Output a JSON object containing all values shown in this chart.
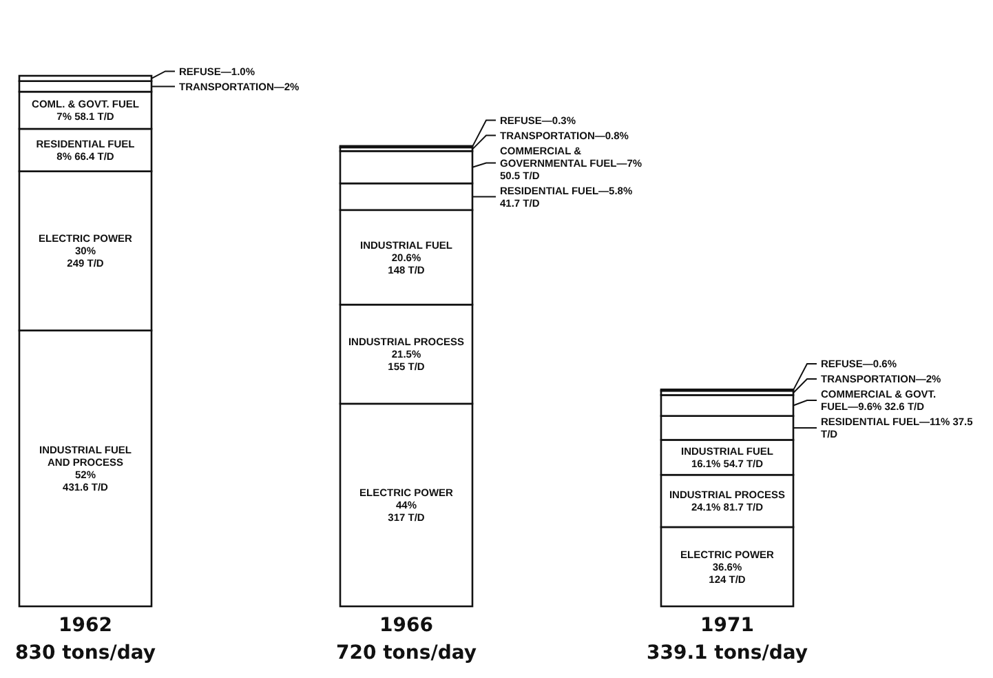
{
  "chart_data": {
    "type": "bar",
    "stacked": true,
    "categories": [
      "1962",
      "1966",
      "1971"
    ],
    "totals": [
      "830 tons/day",
      "720 tons/day",
      "339.1 tons/day"
    ],
    "series": [
      {
        "color": "#ffffff",
        "values": [
          431.6,
          null,
          null
        ],
        "value_labels": [
          "INDUSTRIAL FUEL\nAND PROCESS\n52%\n431.6 T/D",
          null,
          null
        ]
      },
      {
        "color": "#ffffff",
        "values": [
          249,
          317,
          124
        ],
        "value_labels": [
          "ELECTRIC POWER\n30%\n249 T/D",
          "ELECTRIC POWER\n44%\n317 T/D",
          "ELECTRIC POWER\n36.6%\n124 T/D"
        ]
      },
      {
        "color": "#ffffff",
        "values": [
          null,
          155,
          81.7
        ],
        "value_labels": [
          null,
          "INDUSTRIAL PROCESS\n21.5%\n155 T/D",
          "INDUSTRIAL PROCESS\n24.1% 81.7 T/D"
        ]
      },
      {
        "color": "#ffffff",
        "values": [
          null,
          148,
          54.7
        ],
        "value_labels": [
          null,
          "INDUSTRIAL FUEL\n20.6%\n148 T/D",
          "INDUSTRIAL FUEL\n16.1% 54.7 T/D"
        ]
      },
      {
        "color": "#ffffff",
        "values": [
          66.4,
          41.7,
          37.5
        ],
        "value_labels": [
          "RESIDENTIAL FUEL\n8% 66.4 T/D",
          "RESIDENTIAL FUEL—5.8% 41.7 T/D",
          "RESIDENTIAL FUEL—11% 37.5 T/D"
        ]
      },
      {
        "color": "#ffffff",
        "values": [
          58.1,
          50.5,
          32.6
        ],
        "value_labels": [
          "COML. & GOVT. FUEL\n7% 58.1 T/D",
          "COMMERCIAL & GOVERNMENTAL\nFUEL—7% 50.5 T/D",
          "COMMERCIAL & GOVT. FUEL—9.6%\n32.6 T/D"
        ]
      },
      {
        "color": "#ffffff",
        "values": [
          16.6,
          5.8,
          6.8
        ]
      },
      {
        "color": "#ffffff",
        "values": [
          8.3,
          2.2,
          2.0
        ]
      }
    ],
    "annotations": [
      "TRANSPORTATION—2%",
      "REFUSE—1.0%",
      "TRANSPORTATION—0.8%",
      "REFUSE—0.3%",
      "TRANSPORTATION—2%",
      "REFUSE—0.6%"
    ]
  }
}
